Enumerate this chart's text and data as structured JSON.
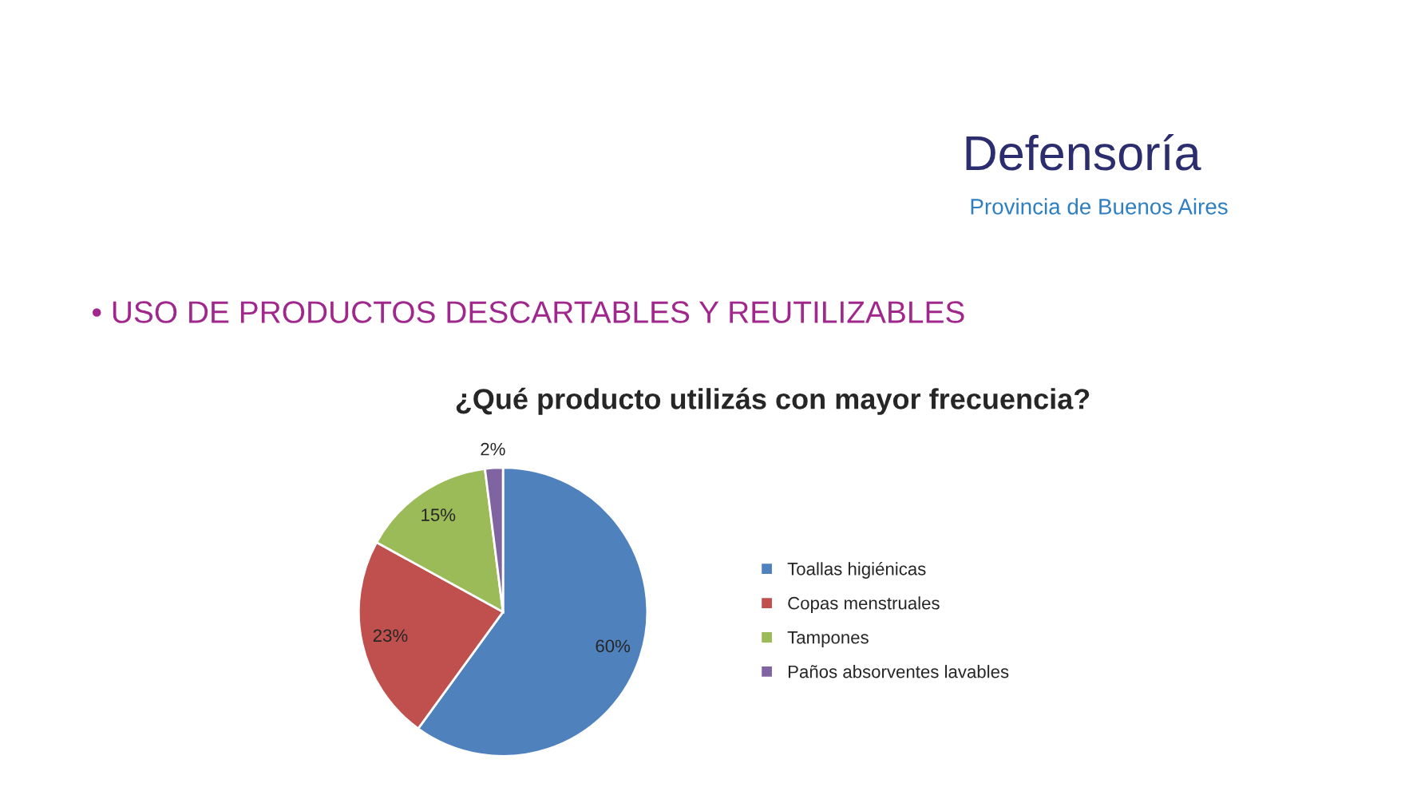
{
  "chart_data": {
    "type": "pie",
    "title": "¿Qué producto utilizás con mayor frecuencia?",
    "subtitle": "• USO DE PRODUCTOS DESCARTABLES Y REUTILIZABLES",
    "annotations": [
      "Defensoría",
      "Provincia de Buenos Aires"
    ],
    "categories": [
      "Toallas higiénicas",
      "Copas menstruales",
      "Tampones",
      "Paños absorventes lavables"
    ],
    "values": [
      60,
      23,
      15,
      2
    ],
    "value_labels": [
      "60%",
      "23%",
      "15%",
      "2%"
    ],
    "colors": [
      "#4f81bd",
      "#c0504d",
      "#9bbb59",
      "#8064a2"
    ],
    "legend": "right"
  }
}
